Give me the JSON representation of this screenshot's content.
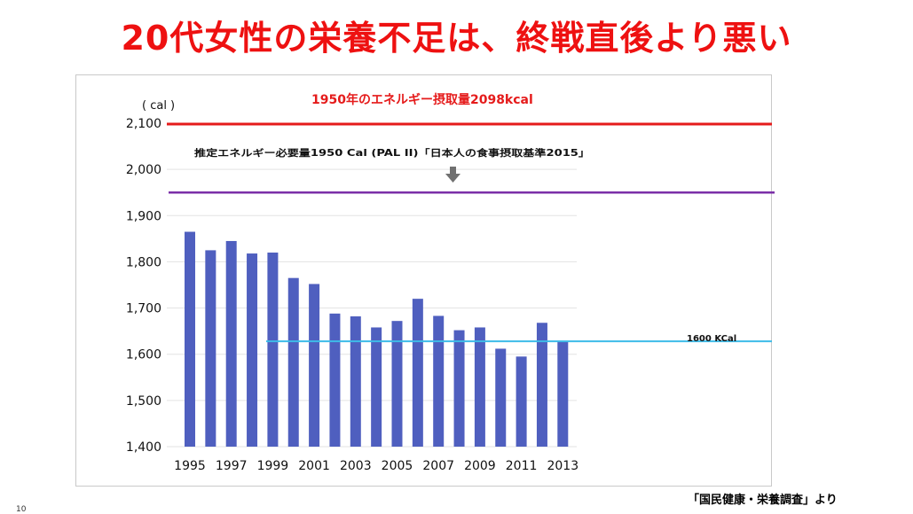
{
  "slide": {
    "title": "20代女性の栄養不足は、終戦直後より悪い",
    "source": "「国民健康・栄養調査」より",
    "page_number": "10"
  },
  "colors": {
    "title": "#ee1111",
    "bar": "#4f5fbf",
    "line_1950": "#e51b1b",
    "line_estimated": "#7b2fa8",
    "line_1600": "#3dbbe8",
    "arrow": "#707070",
    "grid": "#e3e3e3",
    "text": "#111111"
  },
  "chart_data": {
    "type": "bar",
    "title": "",
    "unit_label": "( cal )",
    "xlabel": "",
    "ylabel": "cal",
    "ylim": [
      1400,
      2100
    ],
    "yticks": [
      1400,
      1500,
      1600,
      1700,
      1800,
      1900,
      2000,
      2100
    ],
    "ytick_labels": [
      "1,400",
      "1,500",
      "1,600",
      "1,700",
      "1,800",
      "1,900",
      "2,000",
      "2,100"
    ],
    "grid": true,
    "categories": [
      "1995",
      "1996",
      "1997",
      "1998",
      "1999",
      "2000",
      "2001",
      "2002",
      "2003",
      "2004",
      "2005",
      "2006",
      "2007",
      "2008",
      "2009",
      "2010",
      "2011",
      "2012",
      "2013"
    ],
    "xtick_labels": [
      "1995",
      "1997",
      "1999",
      "2001",
      "2003",
      "2005",
      "2007",
      "2009",
      "2011",
      "2013"
    ],
    "values": [
      1865,
      1825,
      1845,
      1818,
      1820,
      1765,
      1752,
      1688,
      1682,
      1658,
      1672,
      1720,
      1683,
      1652,
      1658,
      1612,
      1595,
      1668,
      1628
    ],
    "reference_lines": [
      {
        "name": "1950",
        "value": 2098,
        "label": "1950年のエネルギー摂取量2098kcal"
      },
      {
        "name": "estimated",
        "value": 1950,
        "label": "推定エネルギー必要量1950 Cal (PAL II)「日本人の食事摂取基準2015」"
      },
      {
        "name": "1600",
        "value": 1628,
        "label": "1600 KCal"
      }
    ]
  }
}
